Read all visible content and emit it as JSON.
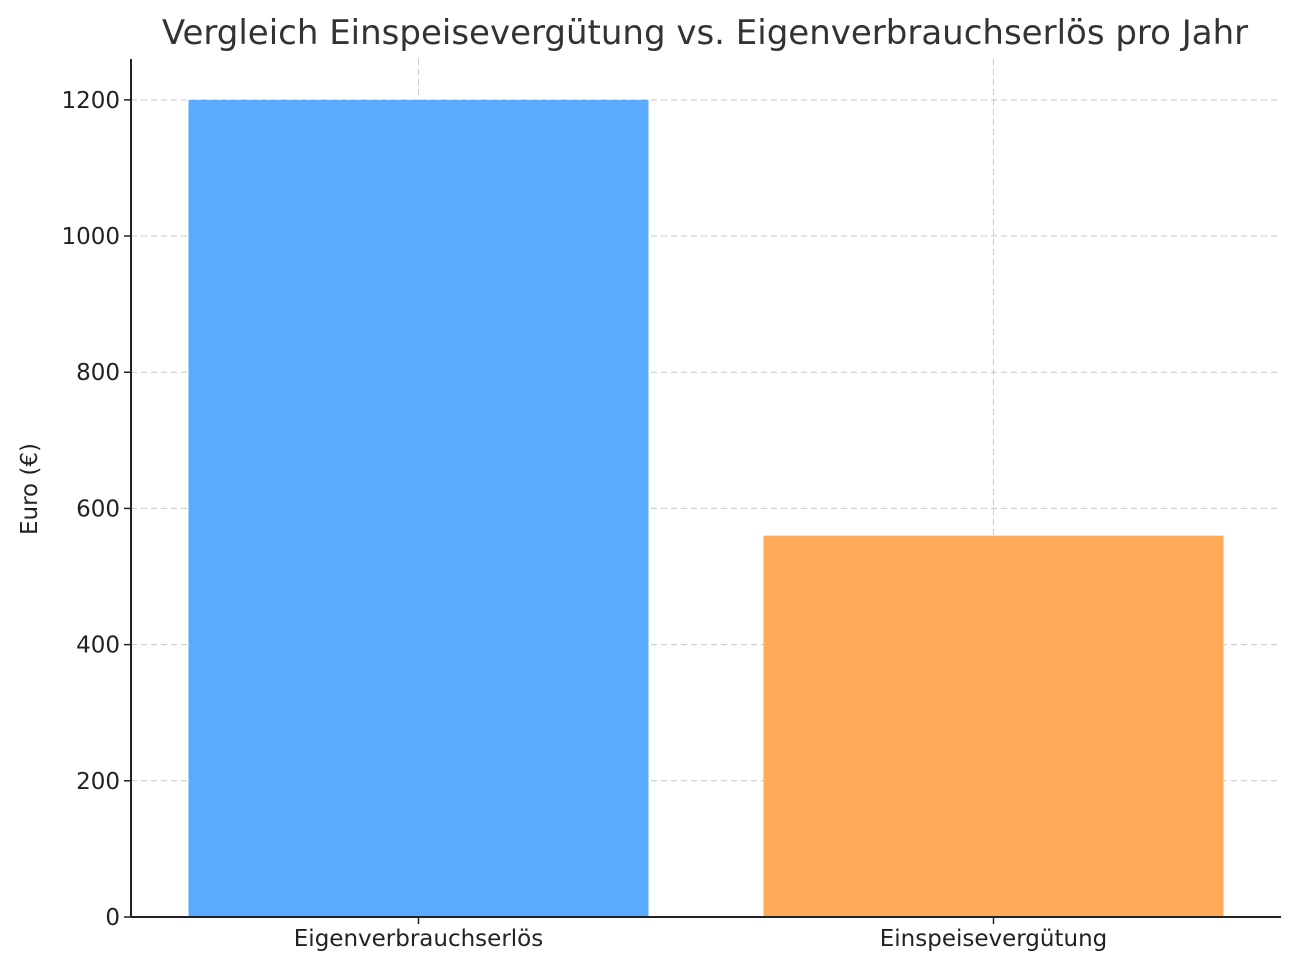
{
  "chart_data": {
    "type": "bar",
    "title": "Vergleich Einspeisevergütung vs. Eigenverbrauchserlös pro Jahr",
    "xlabel": "",
    "ylabel": "Euro (€)",
    "categories": [
      "Eigenverbrauchserlös",
      "Einspeisevergütung"
    ],
    "values": [
      1200,
      560
    ],
    "colors": [
      "#5aabff",
      "#ffab5a"
    ],
    "ylim": [
      0,
      1260
    ],
    "yticks": [
      0,
      200,
      400,
      600,
      800,
      1000,
      1200
    ],
    "grid": true,
    "legend": "none"
  }
}
